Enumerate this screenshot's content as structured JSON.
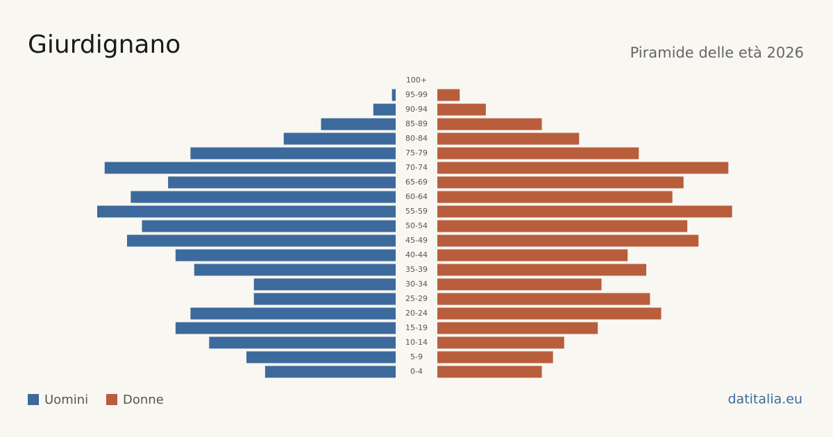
{
  "chart_data": {
    "type": "pyramid",
    "title": "Giurdignano",
    "subtitle": "Piramide delle età 2026",
    "source": "datitalia.eu",
    "categories": [
      "0-4",
      "5-9",
      "10-14",
      "15-19",
      "20-24",
      "25-29",
      "30-34",
      "35-39",
      "40-44",
      "45-49",
      "50-54",
      "55-59",
      "60-64",
      "65-69",
      "70-74",
      "75-79",
      "80-84",
      "85-89",
      "90-94",
      "95-99",
      "100+"
    ],
    "series": [
      {
        "name": "Uomini",
        "color": "#3d6a9c",
        "values": [
          35,
          40,
          50,
          59,
          55,
          38,
          38,
          54,
          59,
          72,
          68,
          80,
          71,
          61,
          78,
          55,
          30,
          20,
          6,
          1,
          0
        ]
      },
      {
        "name": "Donne",
        "color": "#b85e3d",
        "values": [
          28,
          31,
          34,
          43,
          60,
          57,
          44,
          56,
          51,
          70,
          67,
          79,
          63,
          66,
          78,
          54,
          38,
          28,
          13,
          6,
          0
        ]
      }
    ]
  }
}
